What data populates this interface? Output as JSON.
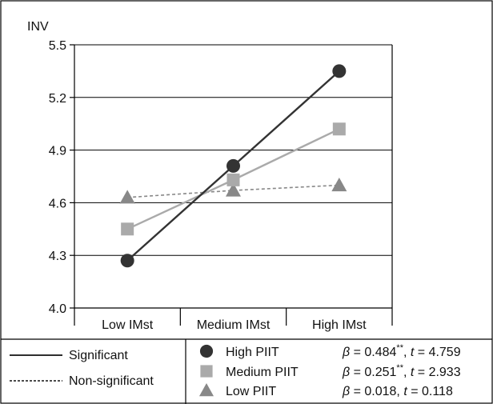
{
  "chart_data": {
    "type": "line",
    "ylabel": "INV",
    "xlabel": "",
    "ylim": [
      4.0,
      5.5
    ],
    "yticks": [
      "4.0",
      "4.3",
      "4.6",
      "4.9",
      "5.2",
      "5.5"
    ],
    "categories": [
      "Low IMst",
      "Medium IMst",
      "High IMst"
    ],
    "grid": "horizontal",
    "series": [
      {
        "name": "High PIIT",
        "values": [
          4.27,
          4.81,
          5.35
        ],
        "marker": "circle",
        "color": "#333333",
        "line": "Significant",
        "beta": "0.484",
        "beta_sig": "**",
        "t": "4.759"
      },
      {
        "name": "Medium PIIT",
        "values": [
          4.45,
          4.73,
          5.02
        ],
        "marker": "square",
        "color": "#aaaaaa",
        "line": "Significant",
        "beta": "0.251",
        "beta_sig": "**",
        "t": "2.933"
      },
      {
        "name": "Low PIIT",
        "values": [
          4.63,
          4.67,
          4.7
        ],
        "marker": "triangle",
        "color": "#888888",
        "line": "Non-significant",
        "beta": "0.018",
        "beta_sig": "",
        "t": "0.118"
      }
    ],
    "line_legend": [
      "Significant",
      "Non-significant"
    ],
    "stat_symbols": {
      "beta": "β",
      "equals": " = ",
      "t": "t"
    }
  }
}
